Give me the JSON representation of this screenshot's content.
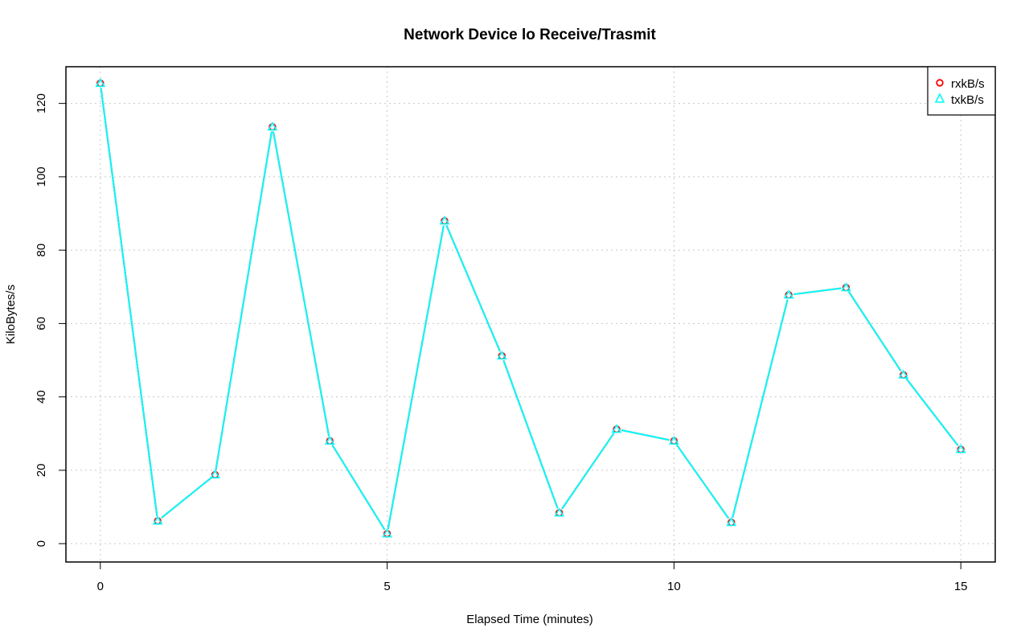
{
  "chart_data": {
    "type": "line",
    "title": "Network Device lo Receive/Trasmit",
    "xlabel": "Elapsed Time (minutes)",
    "ylabel": "KiloBytes/s",
    "xlim": [
      -0.6,
      15.6
    ],
    "ylim": [
      -5,
      130
    ],
    "x_ticks": [
      0,
      5,
      10,
      15
    ],
    "y_ticks": [
      0,
      20,
      40,
      60,
      80,
      100,
      120
    ],
    "grid": true,
    "legend_position": "top-right",
    "x": [
      0,
      1,
      2,
      3,
      4,
      5,
      6,
      7,
      8,
      9,
      10,
      11,
      12,
      13,
      14,
      15
    ],
    "series": [
      {
        "name": "rxkB/s",
        "color": "#ff0000",
        "marker": "circle",
        "values": [
          125.5,
          6.2,
          18.8,
          113.6,
          28.0,
          2.7,
          88.0,
          51.2,
          8.4,
          31.2,
          28.0,
          5.8,
          67.8,
          69.8,
          46.0,
          25.7
        ]
      },
      {
        "name": "txkB/s",
        "color": "#00ffff",
        "marker": "triangle",
        "values": [
          125.5,
          6.2,
          18.8,
          113.6,
          28.0,
          2.7,
          88.0,
          51.2,
          8.4,
          31.2,
          28.0,
          5.8,
          67.8,
          69.8,
          46.0,
          25.7
        ]
      }
    ]
  }
}
